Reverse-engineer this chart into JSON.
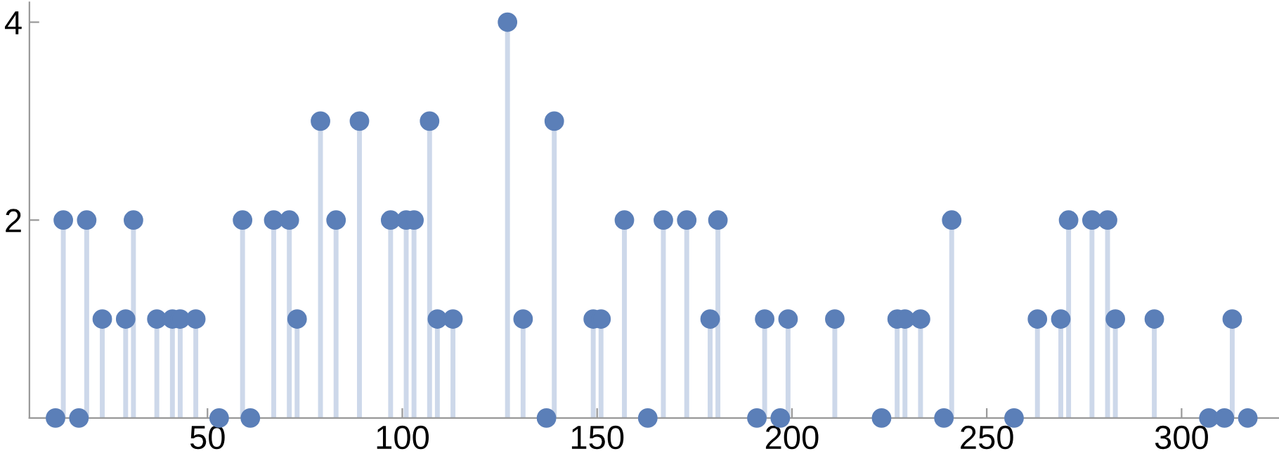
{
  "chart_data": {
    "type": "lollipop",
    "x": [
      11,
      13,
      17,
      19,
      23,
      29,
      31,
      37,
      41,
      43,
      47,
      53,
      59,
      61,
      67,
      71,
      73,
      79,
      83,
      89,
      97,
      101,
      103,
      107,
      109,
      113,
      127,
      131,
      137,
      139,
      149,
      151,
      157,
      163,
      167,
      173,
      179,
      181,
      191,
      193,
      197,
      199,
      211,
      223,
      227,
      229,
      233,
      239,
      241,
      257,
      263,
      269,
      271,
      277,
      281,
      283,
      293,
      307,
      311,
      313,
      317
    ],
    "values": [
      0,
      2,
      0,
      2,
      1,
      1,
      2,
      1,
      1,
      1,
      1,
      0,
      2,
      0,
      2,
      2,
      1,
      3,
      2,
      3,
      2,
      2,
      2,
      3,
      1,
      1,
      4,
      1,
      0,
      3,
      1,
      1,
      2,
      0,
      2,
      2,
      1,
      2,
      0,
      1,
      0,
      1,
      1,
      0,
      1,
      1,
      1,
      0,
      2,
      0,
      1,
      1,
      2,
      2,
      2,
      1,
      1,
      0,
      0,
      1,
      0
    ],
    "color": "#5b7fb8",
    "marker": "circle",
    "xlim": [
      4.3,
      325
    ],
    "ylim": [
      0,
      4.2
    ],
    "xticks": [
      50,
      100,
      150,
      200,
      250,
      300
    ],
    "yticks": [
      2,
      4
    ],
    "grid": false,
    "legend": false
  }
}
